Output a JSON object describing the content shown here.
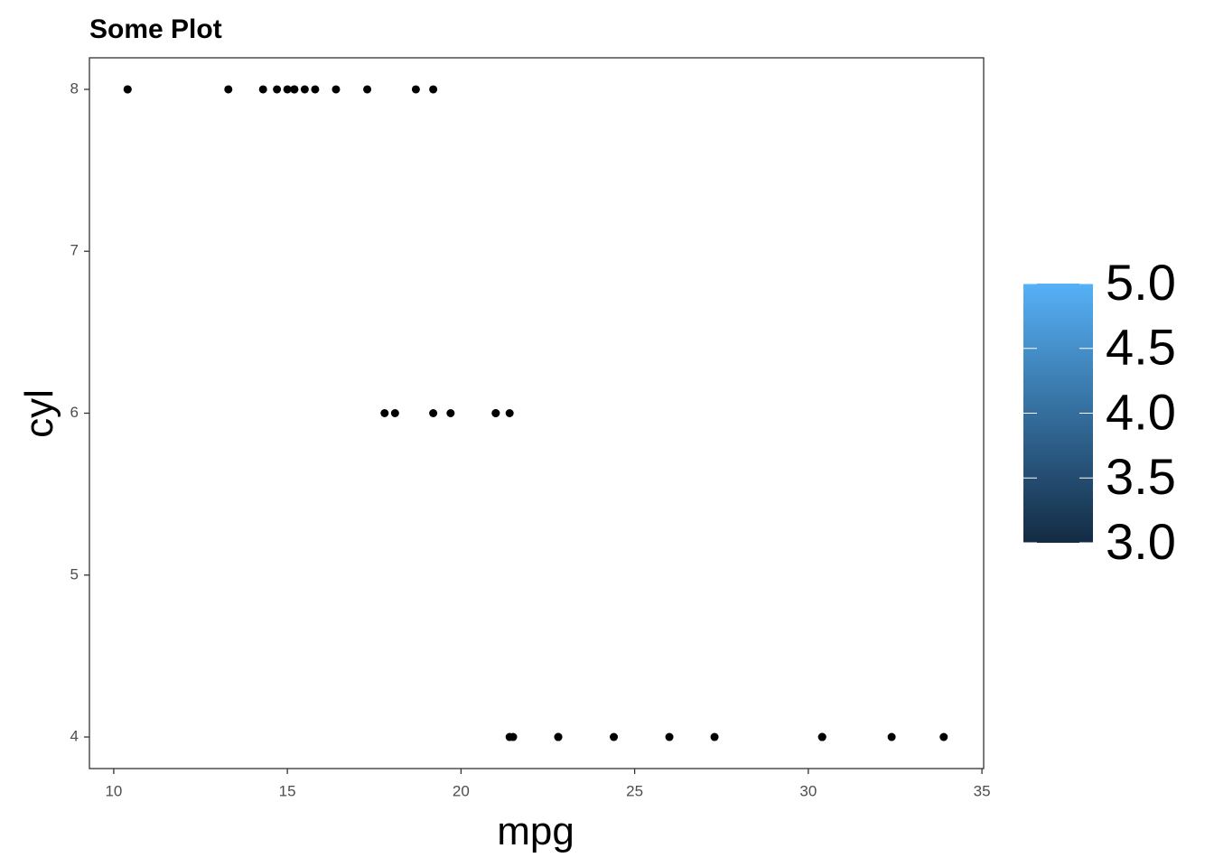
{
  "chart_data": {
    "type": "scatter",
    "title": "Some Plot",
    "x_label": "mpg",
    "y_label": "cyl",
    "x": [
      21.0,
      21.0,
      22.8,
      21.4,
      18.7,
      18.1,
      14.3,
      24.4,
      22.8,
      19.2,
      17.8,
      16.4,
      17.3,
      15.2,
      10.4,
      10.4,
      14.7,
      32.4,
      30.4,
      33.9,
      21.5,
      15.5,
      15.2,
      13.3,
      19.2,
      27.3,
      26.0,
      30.4,
      15.8,
      19.7,
      15.0,
      21.4
    ],
    "values": [
      6,
      6,
      4,
      6,
      8,
      6,
      8,
      4,
      4,
      6,
      6,
      8,
      8,
      8,
      8,
      8,
      8,
      4,
      4,
      4,
      4,
      8,
      8,
      8,
      8,
      4,
      4,
      4,
      8,
      6,
      8,
      4
    ],
    "color": "#000000",
    "xlim": [
      9.3,
      35.05
    ],
    "xticks": [
      10,
      15,
      20,
      25,
      30,
      35
    ],
    "ylim": [
      3.805,
      8.195
    ],
    "yticks": [
      4,
      5,
      6,
      7,
      8
    ],
    "grid": false,
    "colorbar": {
      "limits": [
        3,
        5
      ],
      "colors": [
        "#132B43",
        "#56B1F7"
      ],
      "ticks": [
        {
          "value": 3,
          "label": "3.0"
        },
        {
          "value": 3.5,
          "label": "3.5"
        },
        {
          "value": 4,
          "label": "4.0"
        },
        {
          "value": 4.5,
          "label": "4.5"
        },
        {
          "value": 5,
          "label": "5.0"
        }
      ]
    }
  }
}
